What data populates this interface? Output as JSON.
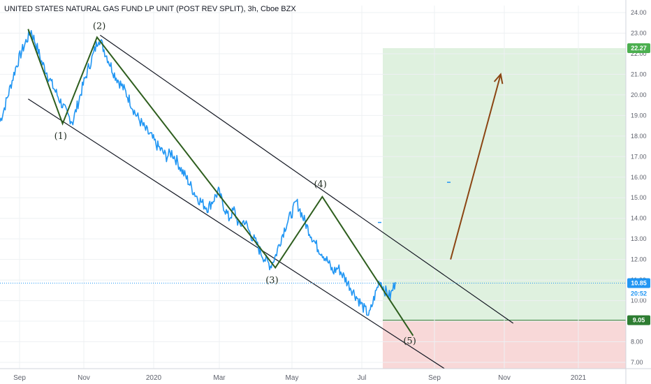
{
  "chart_data": {
    "type": "line",
    "title": "UNITED STATES NATURAL GAS FUND LP UNIT (POST REV SPLIT), 3h, Cboe BZX",
    "x_ticks": [
      "Sep",
      "Nov",
      "2020",
      "Mar",
      "May",
      "Jul",
      "Sep",
      "Nov",
      "2021"
    ],
    "y_ticks": [
      "24.00",
      "23.00",
      "22.00",
      "21.00",
      "20.00",
      "19.00",
      "18.00",
      "17.00",
      "16.00",
      "15.00",
      "14.00",
      "13.00",
      "12.00",
      "11.00",
      "10.00",
      "9.00",
      "8.00",
      "7.00"
    ],
    "ylim": [
      6.8,
      24.1
    ],
    "series": [
      {
        "values": [
          18.7,
          19.5,
          20.4,
          21.3,
          22.0,
          22.6,
          23.1,
          22.4,
          21.6,
          21.1,
          20.5,
          20.0,
          19.5,
          19.0,
          18.7,
          19.6,
          20.5,
          21.3,
          22.0,
          22.8,
          22.2,
          21.6,
          21.0,
          20.6,
          20.2,
          19.7,
          19.1,
          18.7,
          18.3,
          18.0,
          17.6,
          17.3,
          17.0,
          17.2,
          16.8,
          16.3,
          15.9,
          15.4,
          15.0,
          14.7,
          14.5,
          14.9,
          15.3,
          14.6,
          14.0,
          14.4,
          13.6,
          13.9,
          13.3,
          12.9,
          12.4,
          12.0,
          11.7,
          12.2,
          13.0,
          13.7,
          14.2,
          14.8,
          14.2,
          13.6,
          13.1,
          12.6,
          12.3,
          11.9,
          11.4,
          11.6,
          11.2,
          10.8,
          10.4,
          10.0,
          9.6,
          9.3,
          10.2,
          11.0,
          10.5,
          10.2,
          10.9
        ],
        "color": "#2196f3"
      }
    ],
    "annotations": {
      "wave_labels": [
        "(1)",
        "(2)",
        "(3)",
        "(4)",
        "(5)"
      ],
      "wave_points": [
        {
          "label": "(1)",
          "t": 0.1,
          "value": 18.6
        },
        {
          "label": "(2)",
          "t": 0.155,
          "value": 22.8
        },
        {
          "label": "(3)",
          "t": 0.44,
          "value": 11.6
        },
        {
          "label": "(4)",
          "t": 0.515,
          "value": 15.05
        },
        {
          "label": "(5)",
          "t": 0.66,
          "value": 8.3
        }
      ],
      "channel": {
        "upper": [
          {
            "t": 0.16,
            "value": 22.9
          },
          {
            "t": 0.82,
            "value": 8.9
          }
        ],
        "lower": [
          {
            "t": 0.045,
            "value": 19.8
          },
          {
            "t": 0.71,
            "value": 6.7
          }
        ]
      },
      "target_arrow": {
        "from": {
          "t": 0.72,
          "value": 12.0
        },
        "to": {
          "t": 0.8,
          "value": 21.0
        },
        "color": "#8b4513"
      },
      "target_zone": {
        "from_value": 9.05,
        "to_value": 22.27,
        "color": "#4caf50"
      },
      "stop_zone": {
        "from_value": 9.05,
        "to_value": 6.8,
        "color": "#e57373"
      }
    },
    "price_labels": {
      "target": {
        "value": "22.27",
        "color": "#4caf50"
      },
      "current": {
        "value": "10.85",
        "color": "#2196f3"
      },
      "countdown": {
        "value": "20:52"
      },
      "stop": {
        "value": "9.05",
        "color": "#2e7d32"
      }
    },
    "grid": true,
    "legend": "none"
  }
}
